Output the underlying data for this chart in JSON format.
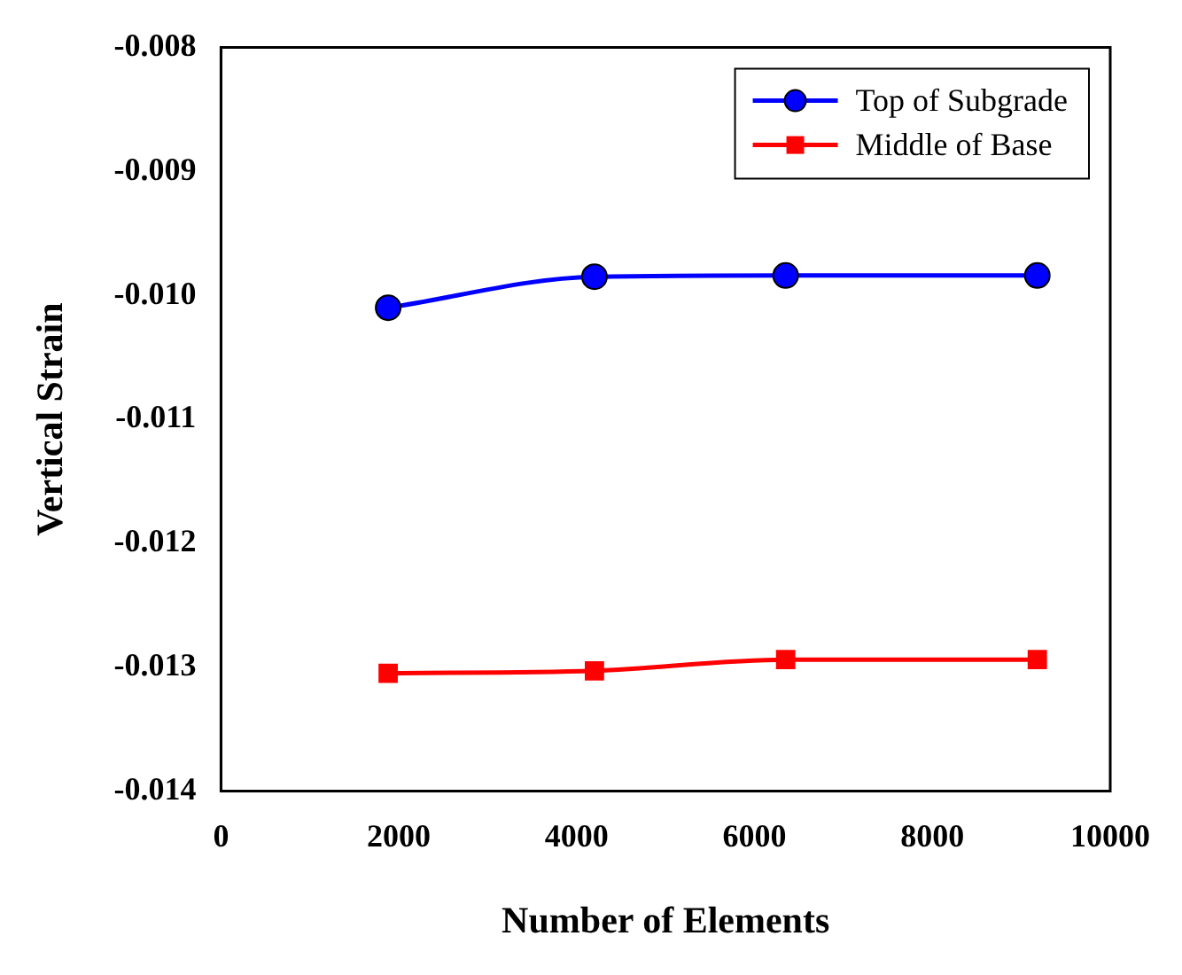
{
  "chart_data": {
    "type": "line",
    "xlabel": "Number of Elements",
    "ylabel": "Vertical Strain",
    "xlim": [
      0,
      10000
    ],
    "xticks": [
      0,
      2000,
      4000,
      6000,
      8000,
      10000
    ],
    "ylim": [
      -0.014,
      -0.008
    ],
    "yticks": [
      {
        "value": -0.014,
        "label": "-0.014"
      },
      {
        "value": -0.013,
        "label": "-0.013"
      },
      {
        "value": -0.012,
        "label": "-0.012"
      },
      {
        "value": -0.011,
        "label": "-0.011"
      },
      {
        "value": -0.01,
        "label": "-0.010"
      },
      {
        "value": -0.009,
        "label": "-0.009"
      },
      {
        "value": -0.008,
        "label": "-0.008"
      }
    ],
    "grid": false,
    "legend": "top right",
    "series": [
      {
        "name": "Top of Subgrade",
        "color": "#0000ff",
        "marker": "circle",
        "x": [
          1880,
          4200,
          6350,
          9180
        ],
        "values": [
          -0.0101,
          -0.00985,
          -0.00984,
          -0.00984
        ]
      },
      {
        "name": "Middle of Base",
        "color": "#ff0000",
        "marker": "square",
        "x": [
          1880,
          4200,
          6350,
          9180
        ],
        "values": [
          -0.01305,
          -0.01303,
          -0.01294,
          -0.01294
        ]
      }
    ]
  }
}
